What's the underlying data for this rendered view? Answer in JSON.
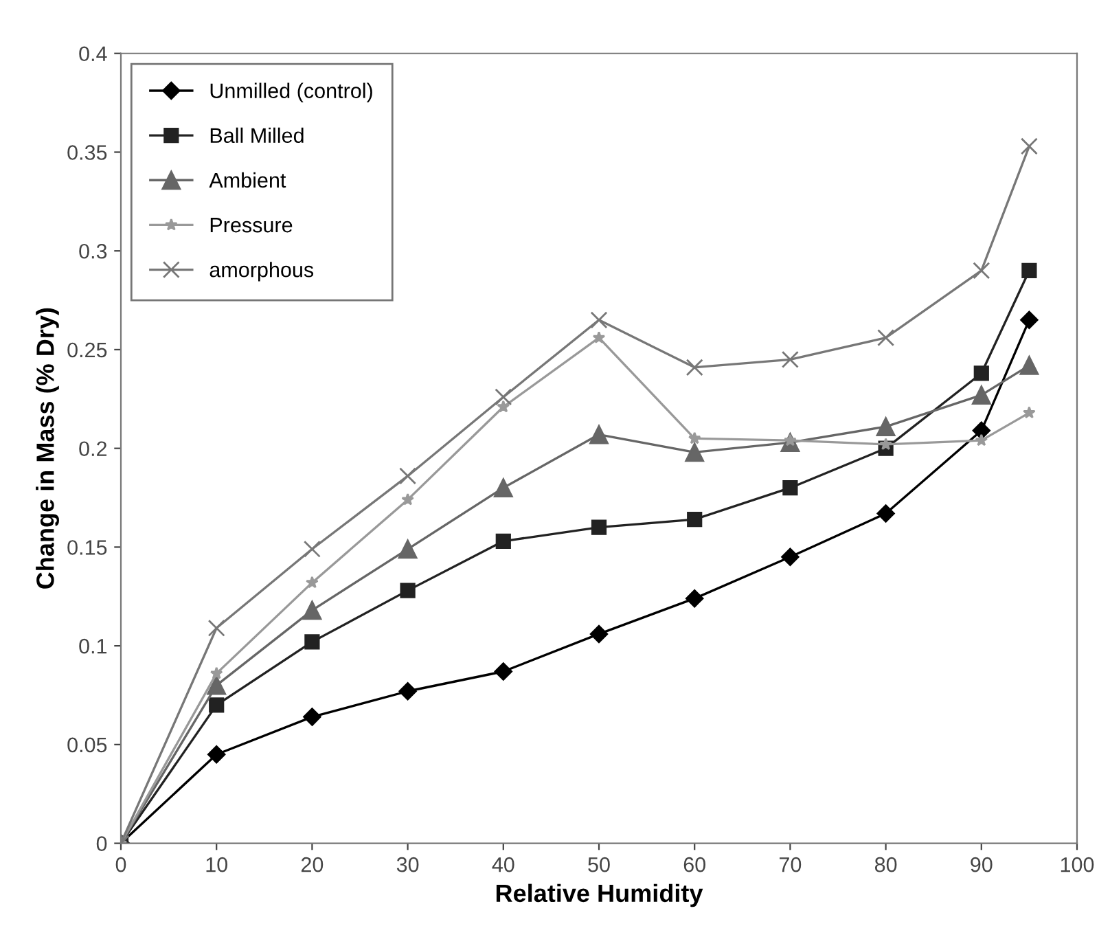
{
  "chart_data": {
    "type": "line",
    "xlabel": "Relative Humidity",
    "ylabel": "Change in Mass (% Dry)",
    "x": [
      0,
      10,
      20,
      30,
      40,
      50,
      60,
      70,
      80,
      90,
      95
    ],
    "series": [
      {
        "name": "Unmilled (control)",
        "color": "#000000",
        "marker": "diamond",
        "values": [
          0,
          0.045,
          0.064,
          0.077,
          0.087,
          0.106,
          0.124,
          0.145,
          0.167,
          0.209,
          0.265
        ]
      },
      {
        "name": "Ball Milled",
        "color": "#222222",
        "marker": "square",
        "values": [
          0,
          0.07,
          0.102,
          0.128,
          0.153,
          0.16,
          0.164,
          0.18,
          0.2,
          0.238,
          0.29
        ]
      },
      {
        "name": "Ambient",
        "color": "#666666",
        "marker": "triangle",
        "values": [
          0,
          0.08,
          0.118,
          0.149,
          0.18,
          0.207,
          0.198,
          0.203,
          0.211,
          0.227,
          0.242
        ]
      },
      {
        "name": "Pressure",
        "color": "#999999",
        "marker": "star",
        "values": [
          0,
          0.086,
          0.132,
          0.174,
          0.221,
          0.256,
          0.205,
          0.204,
          0.202,
          0.204,
          0.218
        ]
      },
      {
        "name": "amorphous",
        "color": "#777777",
        "marker": "cross",
        "values": [
          0,
          0.109,
          0.149,
          0.186,
          0.226,
          0.265,
          0.241,
          0.245,
          0.256,
          0.29,
          0.353
        ]
      }
    ],
    "xlim": [
      0,
      100
    ],
    "xticks": [
      0,
      10,
      20,
      30,
      40,
      50,
      60,
      70,
      80,
      90,
      100
    ],
    "ylim": [
      0,
      0.4
    ],
    "yticks": [
      0,
      0.05,
      0.1,
      0.15,
      0.2,
      0.25,
      0.3,
      0.35,
      0.4
    ],
    "grid": false,
    "legend": "top left",
    "line_style": "solid"
  }
}
